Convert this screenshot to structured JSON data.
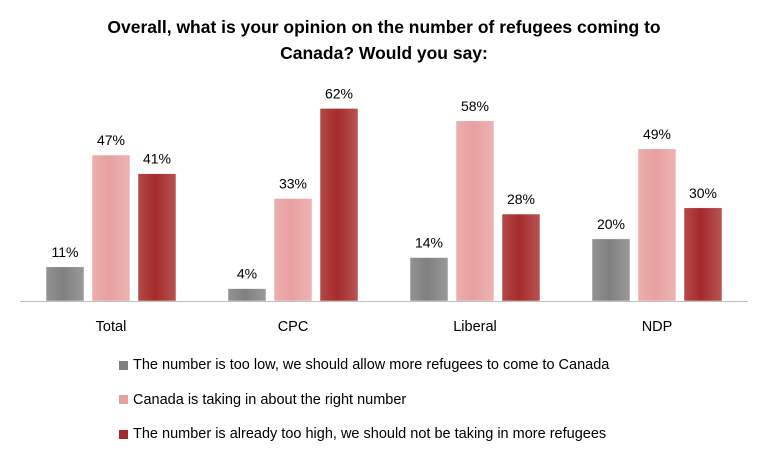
{
  "title": {
    "line1": "Overall, what is your opinion on the number of refugees coming to",
    "line2": "Canada? Would you say:"
  },
  "colors": {
    "too_low": "#808080",
    "about_right": "#E8A0A0",
    "too_high": "#A52A2A",
    "axis": "#BFBFBF"
  },
  "chart_data": {
    "type": "bar",
    "categories": [
      "Total",
      "CPC",
      "Liberal",
      "NDP"
    ],
    "series": [
      {
        "name": "The number is too low, we should allow more refugees to come to Canada",
        "values": [
          11,
          4,
          14,
          20
        ],
        "labels": [
          "11%",
          "4%",
          "14%",
          "20%"
        ]
      },
      {
        "name": "Canada is taking in about the right number",
        "values": [
          47,
          33,
          58,
          49
        ],
        "labels": [
          "47%",
          "33%",
          "58%",
          "49%"
        ]
      },
      {
        "name": "The number is already too high, we should not be taking in more refugees",
        "values": [
          41,
          62,
          28,
          30
        ],
        "labels": [
          "41%",
          "62%",
          "28%",
          "30%"
        ]
      }
    ],
    "ylim": [
      0,
      66
    ],
    "grid": false,
    "legend_position": "bottom"
  }
}
